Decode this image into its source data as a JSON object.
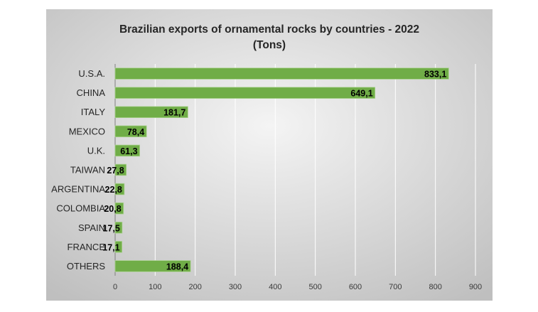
{
  "chart_data": {
    "type": "bar",
    "orientation": "horizontal",
    "title": "Brazilian exports of ornamental rocks by countries - 2022",
    "subtitle": "(Tons)",
    "categories": [
      "U.S.A.",
      "CHINA",
      "ITALY",
      "MEXICO",
      "U.K.",
      "TAIWAN",
      "ARGENTINA",
      "COLOMBIA",
      "SPAIN",
      "FRANCE",
      "OTHERS"
    ],
    "values": [
      833.1,
      649.1,
      181.7,
      78.4,
      61.3,
      27.8,
      22.8,
      20.8,
      17.5,
      17.1,
      188.4
    ],
    "data_labels": [
      "833,1",
      "649,1",
      "181,7",
      "78,4",
      "61,3",
      "27,8",
      "22,8",
      "20,8",
      "17,5",
      "17,1",
      "188,4"
    ],
    "xticks": [
      0,
      100,
      200,
      300,
      400,
      500,
      600,
      700,
      800,
      900
    ],
    "xlim": [
      0,
      900
    ],
    "grid": "vertical",
    "legend": "none",
    "colors": {
      "bar": "#70ad47",
      "bar_border": "#a9d18e",
      "background_light": "#f4f4f4",
      "background_dark": "#bfbfbf",
      "grid": "#ffffff",
      "axis": "#7f7f7f"
    }
  }
}
